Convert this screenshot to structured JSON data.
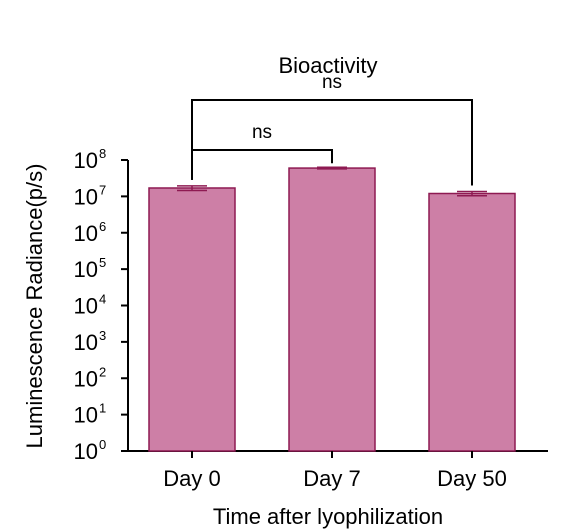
{
  "chart_data": {
    "type": "bar",
    "title": "Bioactivity",
    "xlabel": "Time after lyophilization",
    "ylabel": "Luminescence Radiance(p/s)",
    "yscale": "log",
    "ylim": [
      1,
      100000000
    ],
    "ytick_base": "10",
    "ytick_exponents": [
      "0",
      "1",
      "2",
      "3",
      "4",
      "5",
      "6",
      "7",
      "8"
    ],
    "categories": [
      "Day 0",
      "Day 7",
      "Day 50"
    ],
    "values": [
      17000000,
      60000000,
      12000000
    ],
    "errors": [
      2500000,
      3000000,
      1600000
    ],
    "bar_color": "#cd7fa6",
    "edge_color": "#8e1a52",
    "significance": [
      {
        "from": 0,
        "to": 1,
        "label": "ns"
      },
      {
        "from": 0,
        "to": 2,
        "label": "ns"
      }
    ],
    "grid": false,
    "legend": "none"
  }
}
